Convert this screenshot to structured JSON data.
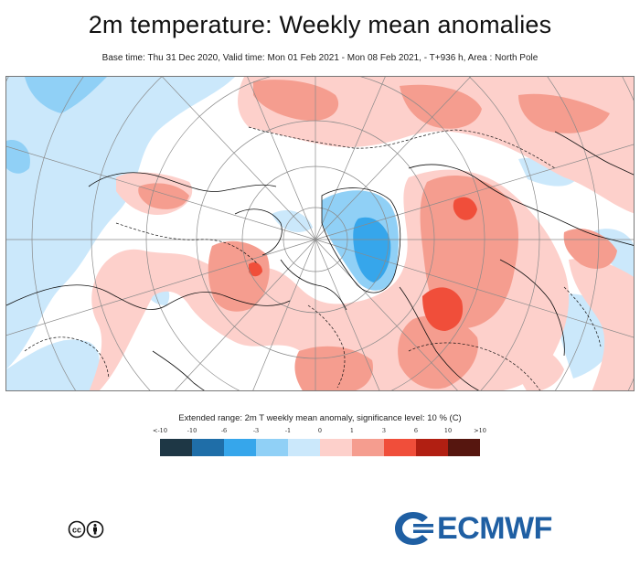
{
  "title": "2m temperature: Weekly mean anomalies",
  "subtitle": "Base time: Thu 31 Dec 2020, Valid time: Mon 01 Feb 2021 - Mon 08 Feb 2021, - T+936 h, Area : North Pole",
  "legend": {
    "title": "Extended range: 2m T weekly mean anomaly, significance level: 10 % (C)",
    "ticks": [
      "<-10",
      "-10",
      "-6",
      "-3",
      "-1",
      "0",
      "1",
      "3",
      "6",
      "10",
      ">10"
    ],
    "colors": [
      "#1e3745",
      "#1f6ea8",
      "#36a6eb",
      "#90d0f6",
      "#cbe8fb",
      "#fdd0cb",
      "#f59d8f",
      "#f04e3a",
      "#b11f12",
      "#56160f"
    ]
  },
  "map": {
    "colors": {
      "warm_light": "#fdd0cb",
      "warm_mid": "#f59d8f",
      "warm_strong": "#f04e3a",
      "cold_light": "#cbe8fb",
      "cold_mid": "#90d0f6",
      "cold_strong": "#36a6eb",
      "grid": "#8a8a8a",
      "coast": "#111111"
    }
  },
  "logo": {
    "text": "ECMWF",
    "color": "#1f5fa3"
  },
  "license_icon": "cc-by-icon"
}
